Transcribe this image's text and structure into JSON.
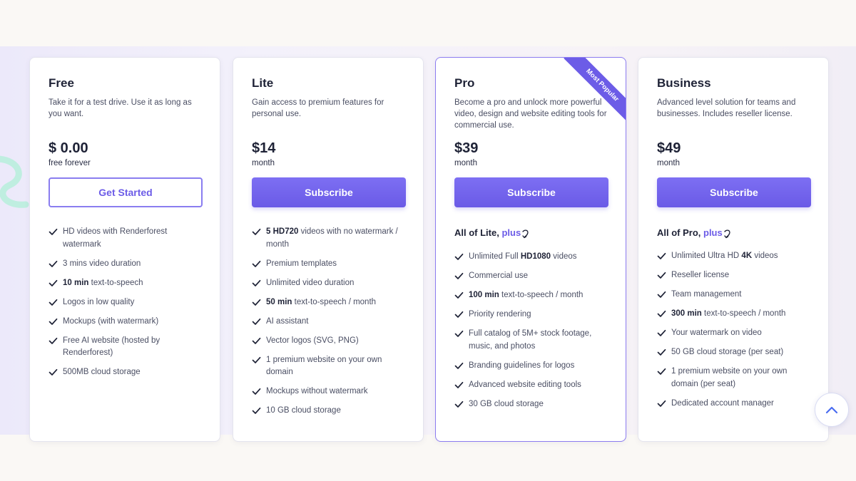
{
  "plans": [
    {
      "name": "Free",
      "description": "Take it for a test drive. Use it as long as you want.",
      "price": "$ 0.00",
      "period": "free forever",
      "button_label": "Get Started",
      "features": [
        [
          {
            "t": "HD videos with Renderforest watermark"
          }
        ],
        [
          {
            "t": "3 mins video duration"
          }
        ],
        [
          {
            "t": "10 min",
            "b": true
          },
          {
            "t": " text-to-speech"
          }
        ],
        [
          {
            "t": "Logos in low quality"
          }
        ],
        [
          {
            "t": "Mockups (with watermark)"
          }
        ],
        [
          {
            "t": "Free AI website (hosted by Renderforest)"
          }
        ],
        [
          {
            "t": "500MB cloud storage"
          }
        ]
      ]
    },
    {
      "name": "Lite",
      "description": "Gain access to premium features for personal use.",
      "price": "$14",
      "period": "month",
      "button_label": "Subscribe",
      "features": [
        [
          {
            "t": "5 HD720",
            "b": true
          },
          {
            "t": " videos with no watermark / month"
          }
        ],
        [
          {
            "t": "Premium templates"
          }
        ],
        [
          {
            "t": "Unlimited video duration"
          }
        ],
        [
          {
            "t": "50 min",
            "b": true
          },
          {
            "t": " text-to-speech / month"
          }
        ],
        [
          {
            "t": "AI assistant"
          }
        ],
        [
          {
            "t": "Vector logos (SVG, PNG)"
          }
        ],
        [
          {
            "t": "1 premium website on your own domain"
          }
        ],
        [
          {
            "t": "Mockups without watermark"
          }
        ],
        [
          {
            "t": "10 GB cloud storage"
          }
        ]
      ]
    },
    {
      "name": "Pro",
      "description": "Become a pro and unlock more powerful video, design and website editing tools for commercial use.",
      "price": "$39",
      "period": "month",
      "button_label": "Subscribe",
      "badge": "Most Popular",
      "plus_prefix": "All of Lite, ",
      "plus_word": "plus",
      "features": [
        [
          {
            "t": "Unlimited Full "
          },
          {
            "t": "HD1080",
            "b": true
          },
          {
            "t": " videos"
          }
        ],
        [
          {
            "t": "Commercial use"
          }
        ],
        [
          {
            "t": "100 min",
            "b": true
          },
          {
            "t": " text-to-speech / month"
          }
        ],
        [
          {
            "t": "Priority rendering"
          }
        ],
        [
          {
            "t": "Full catalog of 5M+ stock footage, music, and photos"
          }
        ],
        [
          {
            "t": "Branding guidelines for logos"
          }
        ],
        [
          {
            "t": "Advanced website editing tools"
          }
        ],
        [
          {
            "t": "30 GB cloud storage"
          }
        ]
      ]
    },
    {
      "name": "Business",
      "description": "Advanced level solution for teams and businesses. Includes reseller license.",
      "price": "$49",
      "period": "month",
      "button_label": "Subscribe",
      "plus_prefix": "All of Pro, ",
      "plus_word": "plus",
      "features": [
        [
          {
            "t": "Unlimited Ultra HD "
          },
          {
            "t": "4K",
            "b": true
          },
          {
            "t": " videos"
          }
        ],
        [
          {
            "t": "Reseller license"
          }
        ],
        [
          {
            "t": "Team management"
          }
        ],
        [
          {
            "t": "300 min",
            "b": true
          },
          {
            "t": " text-to-speech / month"
          }
        ],
        [
          {
            "t": "Your watermark on video"
          }
        ],
        [
          {
            "t": "50 GB cloud storage (per seat)"
          }
        ],
        [
          {
            "t": "1 premium website on your own domain (per seat)"
          }
        ],
        [
          {
            "t": "Dedicated account manager"
          }
        ]
      ]
    }
  ],
  "icons": {
    "feature_check": "check-icon",
    "plus_arrow": "curved-arrow-icon",
    "scroll_top": "chevron-up-icon"
  },
  "colors": {
    "accent": "#6c5ce7",
    "button_gradient_top": "#7d6ff3",
    "button_gradient_bottom": "#6a5ae6",
    "heading": "#1e2236",
    "body_text": "#4a4e63"
  }
}
